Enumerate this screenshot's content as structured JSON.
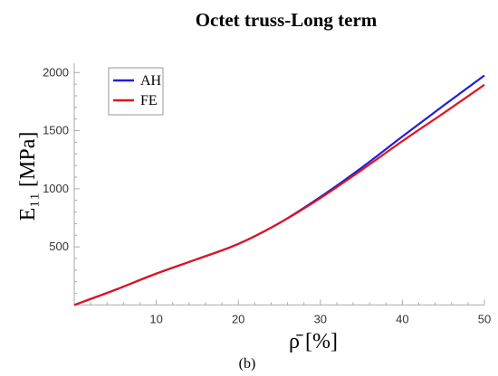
{
  "chart_data": {
    "type": "line",
    "title": "Octet truss-Long term",
    "xlabel": "ρ̄ [%]",
    "ylabel": "E₁₁ [MPa]",
    "caption": "(b)",
    "xlim": [
      0,
      50
    ],
    "ylim": [
      -20,
      2080
    ],
    "xticks": [
      10,
      20,
      30,
      40,
      50
    ],
    "yticks": [
      500,
      1000,
      1500,
      2000
    ],
    "grid": false,
    "legend_position": "top-left",
    "series": [
      {
        "name": "AH",
        "color": "#1f1fdc",
        "x": [
          0,
          5,
          10,
          15,
          20,
          25,
          30,
          35,
          40,
          45,
          50
        ],
        "y": [
          0,
          130,
          270,
          395,
          525,
          705,
          930,
          1180,
          1450,
          1715,
          1975
        ]
      },
      {
        "name": "FE",
        "color": "#e0141e",
        "x": [
          0,
          5,
          10,
          15,
          20,
          25,
          30,
          35,
          40,
          45,
          50
        ],
        "y": [
          0,
          130,
          270,
          395,
          525,
          705,
          920,
          1160,
          1410,
          1650,
          1895
        ]
      }
    ]
  }
}
